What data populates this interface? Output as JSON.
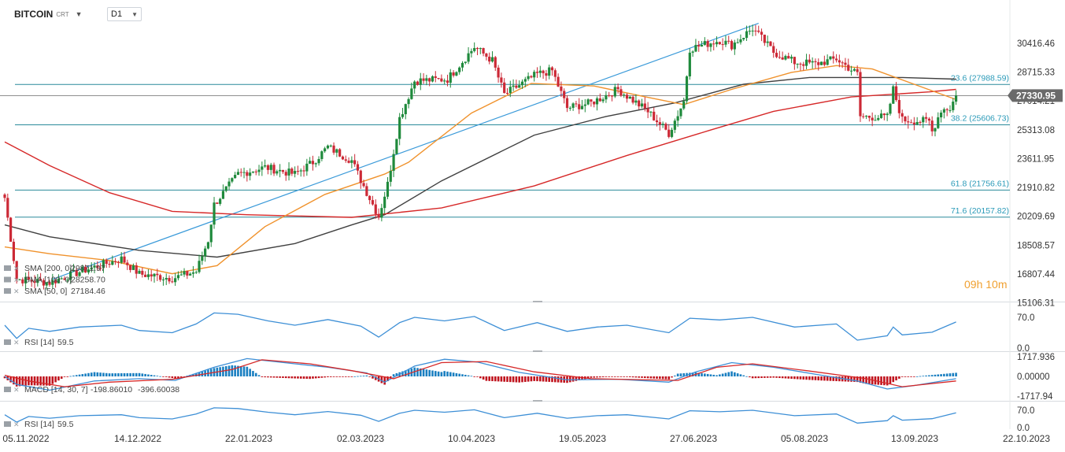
{
  "instrument": {
    "symbol": "BITCOIN",
    "suffix": "CRT",
    "timeframe": "D1"
  },
  "countdown": {
    "h": "09",
    "h_unit": "h",
    "m": "10",
    "m_unit": "m"
  },
  "colors": {
    "candle_up": "#1f8a3c",
    "candle_down": "#cc2936",
    "sma200": "#404040",
    "sma100": "#d62828",
    "sma50": "#f0922c",
    "rsi": "#3d8fd6",
    "macd": "#3d8fd6",
    "signal": "#d62828",
    "fib": "#2a8a9a",
    "trend": "#3a9ad9"
  },
  "chart_data": {
    "type": "line",
    "title": "",
    "x_ticks": [
      "05.11.2022",
      "14.12.2022",
      "22.01.2023",
      "02.03.2023",
      "10.04.2023",
      "19.05.2023",
      "27.06.2023",
      "05.08.2023",
      "13.09.2023",
      "22.10.2023"
    ],
    "y_ticks": [
      "30416.46",
      "28715.33",
      "27014.21",
      "25313.08",
      "23611.95",
      "21910.82",
      "20209.69",
      "18508.57",
      "16807.44",
      "15106.31"
    ],
    "ylim": [
      15106.31,
      32117.59
    ],
    "last_price": "27330.95",
    "fibonacci": [
      {
        "label": "23.6 (27988.59)",
        "value": 27988.59
      },
      {
        "label": "38.2 (25606.73)",
        "value": 25606.73
      },
      {
        "label": "61.8 (21756.61)",
        "value": 21756.61
      },
      {
        "label": "71.6 (20157.82)",
        "value": 20157.82
      }
    ],
    "price_path": [
      [
        "2022-11-05",
        21300
      ],
      [
        "2022-11-09",
        16500
      ],
      [
        "2022-11-20",
        16300
      ],
      [
        "2022-12-01",
        17000
      ],
      [
        "2022-12-14",
        17700
      ],
      [
        "2022-12-20",
        16800
      ],
      [
        "2022-12-31",
        16550
      ],
      [
        "2023-01-08",
        16950
      ],
      [
        "2023-01-12",
        18800
      ],
      [
        "2023-01-14",
        20900
      ],
      [
        "2023-01-22",
        22700
      ],
      [
        "2023-01-31",
        23100
      ],
      [
        "2023-02-10",
        22700
      ],
      [
        "2023-02-16",
        23400
      ],
      [
        "2023-02-21",
        24300
      ],
      [
        "2023-03-01",
        23500
      ],
      [
        "2023-03-04",
        22350
      ],
      [
        "2023-03-10",
        20200
      ],
      [
        "2023-03-13",
        22100
      ],
      [
        "2023-03-17",
        26000
      ],
      [
        "2023-03-22",
        28200
      ],
      [
        "2023-04-02",
        28300
      ],
      [
        "2023-04-11",
        30200
      ],
      [
        "2023-04-17",
        29400
      ],
      [
        "2023-04-21",
        27400
      ],
      [
        "2023-05-02",
        28600
      ],
      [
        "2023-05-07",
        28800
      ],
      [
        "2023-05-12",
        26600
      ],
      [
        "2023-05-20",
        26900
      ],
      [
        "2023-05-29",
        27700
      ],
      [
        "2023-06-08",
        26400
      ],
      [
        "2023-06-15",
        25100
      ],
      [
        "2023-06-20",
        27000
      ],
      [
        "2023-06-22",
        30100
      ],
      [
        "2023-07-02",
        30600
      ],
      [
        "2023-07-06",
        30300
      ],
      [
        "2023-07-13",
        31300
      ],
      [
        "2023-07-20",
        29900
      ],
      [
        "2023-07-27",
        29300
      ],
      [
        "2023-08-03",
        29200
      ],
      [
        "2023-08-10",
        29500
      ],
      [
        "2023-08-17",
        28600
      ],
      [
        "2023-08-18",
        26100
      ],
      [
        "2023-08-27",
        26050
      ],
      [
        "2023-08-29",
        27700
      ],
      [
        "2023-09-01",
        25900
      ],
      [
        "2023-09-10",
        25800
      ],
      [
        "2023-09-11",
        25200
      ],
      [
        "2023-09-14",
        26500
      ],
      [
        "2023-09-17",
        26600
      ],
      [
        "2023-09-19",
        27330
      ]
    ],
    "series": [
      {
        "key": "sma200",
        "label": "SMA [200, 0]",
        "value": "29871.97",
        "points": [
          [
            "2022-11-05",
            19700
          ],
          [
            "2022-11-20",
            19000
          ],
          [
            "2022-12-20",
            18200
          ],
          [
            "2023-01-15",
            17800
          ],
          [
            "2023-02-10",
            18600
          ],
          [
            "2023-03-01",
            19700
          ],
          [
            "2023-03-12",
            20300
          ],
          [
            "2023-03-31",
            22300
          ],
          [
            "2023-05-01",
            25000
          ],
          [
            "2023-05-25",
            26100
          ],
          [
            "2023-06-17",
            26900
          ],
          [
            "2023-07-10",
            28000
          ],
          [
            "2023-08-01",
            28400
          ],
          [
            "2023-09-01",
            28400
          ],
          [
            "2023-09-19",
            28300
          ]
        ]
      },
      {
        "key": "sma100",
        "label": "SMA [100, 0]",
        "value": "28258.70",
        "points": [
          [
            "2022-11-05",
            24600
          ],
          [
            "2022-11-20",
            23200
          ],
          [
            "2022-12-10",
            21600
          ],
          [
            "2022-12-31",
            20500
          ],
          [
            "2023-01-25",
            20300
          ],
          [
            "2023-03-01",
            20150
          ],
          [
            "2023-03-31",
            20700
          ],
          [
            "2023-05-01",
            22000
          ],
          [
            "2023-06-01",
            23800
          ],
          [
            "2023-06-29",
            25300
          ],
          [
            "2023-07-20",
            26400
          ],
          [
            "2023-08-15",
            27250
          ],
          [
            "2023-09-10",
            27550
          ],
          [
            "2023-09-19",
            27700
          ]
        ]
      },
      {
        "key": "sma50",
        "label": "SMA [50, 0]",
        "value": "27184.46",
        "points": [
          [
            "2022-11-05",
            18400
          ],
          [
            "2022-11-20",
            18000
          ],
          [
            "2022-12-10",
            17600
          ],
          [
            "2022-12-31",
            16820
          ],
          [
            "2023-01-15",
            17300
          ],
          [
            "2023-01-31",
            19600
          ],
          [
            "2023-02-20",
            21500
          ],
          [
            "2023-03-12",
            22700
          ],
          [
            "2023-03-20",
            23400
          ],
          [
            "2023-04-10",
            26300
          ],
          [
            "2023-04-30",
            28050
          ],
          [
            "2023-05-21",
            27900
          ],
          [
            "2023-06-06",
            27300
          ],
          [
            "2023-06-20",
            26800
          ],
          [
            "2023-07-06",
            27700
          ],
          [
            "2023-07-26",
            28700
          ],
          [
            "2023-08-10",
            29100
          ],
          [
            "2023-08-22",
            28900
          ],
          [
            "2023-09-05",
            28000
          ],
          [
            "2023-09-19",
            27100
          ]
        ]
      }
    ],
    "trendline": [
      [
        "2022-11-21",
        16500
      ],
      [
        "2023-07-15",
        31600
      ]
    ],
    "rsi": {
      "label": "RSI [14]",
      "value": "59.5",
      "y_ticks": [
        "70.0",
        "0.0"
      ],
      "ylim": [
        0,
        100
      ],
      "points": [
        [
          "2022-11-05",
          52
        ],
        [
          "2022-11-09",
          22
        ],
        [
          "2022-11-13",
          45
        ],
        [
          "2022-11-20",
          38
        ],
        [
          "2022-11-30",
          48
        ],
        [
          "2022-12-14",
          52
        ],
        [
          "2022-12-20",
          40
        ],
        [
          "2022-12-31",
          35
        ],
        [
          "2023-01-08",
          55
        ],
        [
          "2023-01-14",
          80
        ],
        [
          "2023-01-22",
          77
        ],
        [
          "2023-02-01",
          62
        ],
        [
          "2023-02-10",
          52
        ],
        [
          "2023-02-21",
          65
        ],
        [
          "2023-03-04",
          50
        ],
        [
          "2023-03-10",
          25
        ],
        [
          "2023-03-17",
          58
        ],
        [
          "2023-03-22",
          70
        ],
        [
          "2023-04-01",
          62
        ],
        [
          "2023-04-11",
          72
        ],
        [
          "2023-04-21",
          40
        ],
        [
          "2023-05-02",
          58
        ],
        [
          "2023-05-12",
          38
        ],
        [
          "2023-05-22",
          48
        ],
        [
          "2023-06-01",
          52
        ],
        [
          "2023-06-15",
          35
        ],
        [
          "2023-06-22",
          68
        ],
        [
          "2023-07-02",
          64
        ],
        [
          "2023-07-13",
          70
        ],
        [
          "2023-07-27",
          48
        ],
        [
          "2023-08-10",
          55
        ],
        [
          "2023-08-17",
          18
        ],
        [
          "2023-08-27",
          28
        ],
        [
          "2023-08-29",
          48
        ],
        [
          "2023-09-01",
          30
        ],
        [
          "2023-09-11",
          36
        ],
        [
          "2023-09-19",
          59.5
        ]
      ]
    },
    "macd": {
      "label": "MACD [14, 30, 7]",
      "macd_value": "-198.86010",
      "signal_value": "-396.60038",
      "y_ticks": [
        "1717.936",
        "0.00000",
        "-1717.94"
      ],
      "ylim": [
        -1717.94,
        1717.936
      ],
      "macd_line": [
        [
          "2022-11-05",
          0
        ],
        [
          "2022-11-09",
          -700
        ],
        [
          "2022-11-20",
          -1200
        ],
        [
          "2022-12-05",
          -400
        ],
        [
          "2022-12-20",
          -200
        ],
        [
          "2023-01-01",
          -350
        ],
        [
          "2023-01-14",
          800
        ],
        [
          "2023-01-25",
          1550
        ],
        [
          "2023-02-10",
          1100
        ],
        [
          "2023-02-21",
          800
        ],
        [
          "2023-03-06",
          300
        ],
        [
          "2023-03-12",
          -500
        ],
        [
          "2023-03-22",
          900
        ],
        [
          "2023-04-01",
          1500
        ],
        [
          "2023-04-12",
          1250
        ],
        [
          "2023-04-26",
          350
        ],
        [
          "2023-05-12",
          -300
        ],
        [
          "2023-05-29",
          -250
        ],
        [
          "2023-06-15",
          -500
        ],
        [
          "2023-06-24",
          400
        ],
        [
          "2023-07-06",
          1200
        ],
        [
          "2023-07-20",
          800
        ],
        [
          "2023-08-05",
          100
        ],
        [
          "2023-08-17",
          -400
        ],
        [
          "2023-08-27",
          -1100
        ],
        [
          "2023-09-05",
          -800
        ],
        [
          "2023-09-19",
          -199
        ]
      ],
      "signal_line": [
        [
          "2022-11-05",
          100
        ],
        [
          "2022-11-13",
          -400
        ],
        [
          "2022-11-25",
          -900
        ],
        [
          "2022-12-10",
          -500
        ],
        [
          "2022-12-31",
          -250
        ],
        [
          "2023-01-20",
          600
        ],
        [
          "2023-01-30",
          1450
        ],
        [
          "2023-02-15",
          1100
        ],
        [
          "2023-03-01",
          500
        ],
        [
          "2023-03-15",
          -200
        ],
        [
          "2023-03-31",
          1200
        ],
        [
          "2023-04-15",
          1300
        ],
        [
          "2023-05-01",
          400
        ],
        [
          "2023-05-20",
          -200
        ],
        [
          "2023-06-18",
          -350
        ],
        [
          "2023-07-01",
          800
        ],
        [
          "2023-07-13",
          1100
        ],
        [
          "2023-07-31",
          500
        ],
        [
          "2023-08-20",
          -200
        ],
        [
          "2023-09-01",
          -900
        ],
        [
          "2023-09-19",
          -397
        ]
      ],
      "histogram_up": "#1a7fc1",
      "histogram_down": "#c0141e"
    },
    "rsi2": {
      "label": "RSI [14]",
      "value": "59.5",
      "y_ticks": [
        "70.0",
        "0.0"
      ]
    }
  }
}
